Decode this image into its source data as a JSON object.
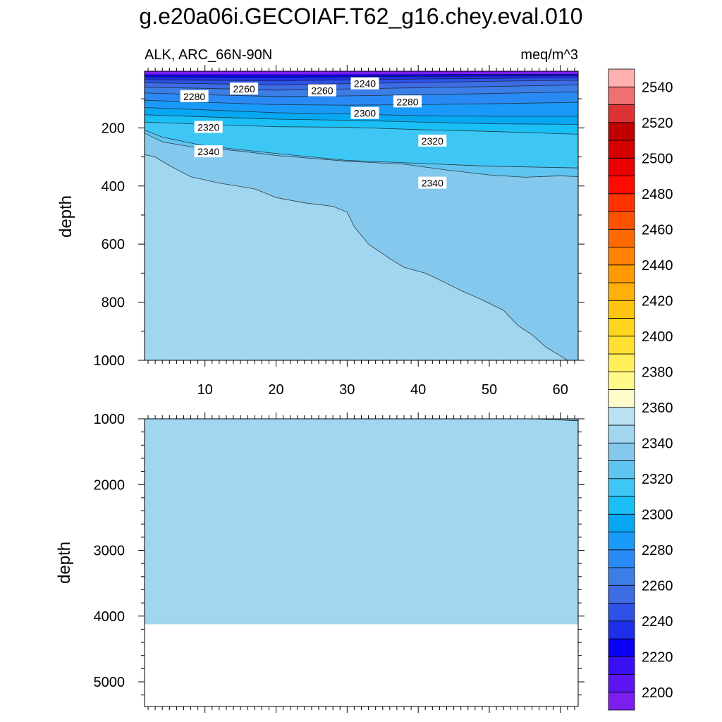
{
  "chart_data": {
    "type": "heatmap",
    "title": "g.e20a06i.GECOIAF.T62_g16.chey.eval.010",
    "panels": [
      {
        "name": "upper",
        "left_label": "ALK, ARC_66N-90N",
        "right_label": "meq/m^3",
        "ylabel": "depth",
        "ylim": [
          0,
          1000
        ],
        "xlim": [
          1.5,
          62.5
        ],
        "x_ticks": [
          10,
          20,
          30,
          40,
          50,
          60
        ],
        "y_ticks": [
          200,
          400,
          600,
          800,
          1000
        ],
        "y_tick_labels": [
          "200",
          "400",
          "600",
          "800",
          "1000"
        ],
        "top_depth": 5,
        "contour_lines": [
          {
            "level": 2220,
            "points": [
              [
                1.5,
                12
              ],
              [
                20,
                12
              ],
              [
                40,
                11
              ],
              [
                62.5,
                11
              ]
            ]
          },
          {
            "level": 2230,
            "points": [
              [
                1.5,
                18
              ],
              [
                20,
                19
              ],
              [
                40,
                17
              ],
              [
                62.5,
                15
              ]
            ]
          },
          {
            "level": 2240,
            "points": [
              [
                1.5,
                25
              ],
              [
                10,
                26
              ],
              [
                20,
                27
              ],
              [
                30,
                25
              ],
              [
                40,
                23
              ],
              [
                50,
                22
              ],
              [
                62.5,
                20
              ]
            ]
          },
          {
            "level": 2250,
            "points": [
              [
                1.5,
                34
              ],
              [
                10,
                36
              ],
              [
                20,
                38
              ],
              [
                30,
                35
              ],
              [
                40,
                32
              ],
              [
                50,
                30
              ],
              [
                62.5,
                27
              ]
            ]
          },
          {
            "level": 2260,
            "points": [
              [
                1.5,
                45
              ],
              [
                10,
                48
              ],
              [
                20,
                52
              ],
              [
                30,
                48
              ],
              [
                40,
                44
              ],
              [
                50,
                40
              ],
              [
                62.5,
                36
              ]
            ]
          },
          {
            "level": 2270,
            "points": [
              [
                1.5,
                60
              ],
              [
                10,
                64
              ],
              [
                20,
                70
              ],
              [
                30,
                66
              ],
              [
                40,
                62
              ],
              [
                50,
                58
              ],
              [
                62.5,
                52
              ]
            ]
          },
          {
            "level": 2280,
            "points": [
              [
                1.5,
                80
              ],
              [
                10,
                86
              ],
              [
                20,
                92
              ],
              [
                30,
                90
              ],
              [
                40,
                86
              ],
              [
                50,
                82
              ],
              [
                62.5,
                76
              ]
            ]
          },
          {
            "level": 2290,
            "points": [
              [
                1.5,
                105
              ],
              [
                10,
                112
              ],
              [
                20,
                120
              ],
              [
                30,
                122
              ],
              [
                40,
                120
              ],
              [
                50,
                117
              ],
              [
                62.5,
                112
              ]
            ]
          },
          {
            "level": 2300,
            "points": [
              [
                1.5,
                130
              ],
              [
                10,
                138
              ],
              [
                20,
                148
              ],
              [
                30,
                152
              ],
              [
                40,
                158
              ],
              [
                50,
                160
              ],
              [
                62.5,
                160
              ]
            ]
          },
          {
            "level": 2310,
            "points": [
              [
                1.5,
                155
              ],
              [
                10,
                162
              ],
              [
                20,
                170
              ],
              [
                30,
                174
              ],
              [
                40,
                180
              ],
              [
                50,
                186
              ],
              [
                62.5,
                188
              ]
            ]
          },
          {
            "level": 2320,
            "points": [
              [
                1.5,
                180
              ],
              [
                10,
                188
              ],
              [
                20,
                196
              ],
              [
                30,
                198
              ],
              [
                40,
                206
              ],
              [
                50,
                212
              ],
              [
                62.5,
                222
              ]
            ]
          },
          {
            "level": 2330,
            "points": [
              [
                1.5,
                208
              ],
              [
                4,
                232
              ],
              [
                10,
                262
              ],
              [
                20,
                288
              ],
              [
                30,
                312
              ],
              [
                40,
                322
              ],
              [
                50,
                332
              ],
              [
                62.5,
                338
              ]
            ]
          },
          {
            "level": 2340,
            "points": [
              [
                1.5,
                218
              ],
              [
                4,
                248
              ],
              [
                8,
                265
              ],
              [
                15,
                280
              ],
              [
                20,
                295
              ],
              [
                30,
                315
              ],
              [
                38,
                325
              ],
              [
                44,
                345
              ],
              [
                50,
                362
              ],
              [
                55,
                370
              ],
              [
                60,
                365
              ],
              [
                62.5,
                368
              ]
            ]
          },
          {
            "level": 2350,
            "points": [
              [
                1.5,
                292
              ],
              [
                3,
                300
              ],
              [
                5,
                330
              ],
              [
                8,
                368
              ],
              [
                12,
                390
              ],
              [
                17,
                410
              ],
              [
                20,
                440
              ],
              [
                24,
                458
              ],
              [
                28,
                470
              ],
              [
                30,
                490
              ],
              [
                31,
                540
              ],
              [
                33,
                600
              ],
              [
                36,
                650
              ],
              [
                38,
                680
              ],
              [
                41,
                700
              ],
              [
                44,
                735
              ],
              [
                46,
                760
              ],
              [
                49,
                792
              ],
              [
                52,
                828
              ],
              [
                54,
                880
              ],
              [
                56,
                912
              ],
              [
                58,
                955
              ],
              [
                60,
                985
              ],
              [
                61,
                1000
              ]
            ]
          }
        ],
        "contour_labels": [
          {
            "text": "2240",
            "x": 32.5,
            "y": 48
          },
          {
            "text": "2260",
            "x": 15.5,
            "y": 66
          },
          {
            "text": "2260",
            "x": 26.5,
            "y": 72
          },
          {
            "text": "2280",
            "x": 8.5,
            "y": 92
          },
          {
            "text": "2280",
            "x": 38.5,
            "y": 110
          },
          {
            "text": "2300",
            "x": 32.5,
            "y": 150
          },
          {
            "text": "2320",
            "x": 10.5,
            "y": 198
          },
          {
            "text": "2320",
            "x": 42,
            "y": 245
          },
          {
            "text": "2340",
            "x": 10.5,
            "y": 282
          },
          {
            "text": "2340",
            "x": 42,
            "y": 390
          }
        ]
      },
      {
        "name": "lower",
        "ylabel": "depth",
        "ylim": [
          1000,
          5375
        ],
        "xlim": [
          1.5,
          62.5
        ],
        "y_ticks": [
          1000,
          2000,
          3000,
          4000,
          5000
        ],
        "y_tick_labels": [
          "1000",
          "2000",
          "3000",
          "4000",
          "5000"
        ],
        "fill_value": 2355,
        "fill_depth_max": 4125,
        "deep_corner": {
          "level": 2350,
          "points": [
            [
              56,
              1000
            ],
            [
              59,
              1012
            ],
            [
              62.5,
              1030
            ]
          ]
        }
      }
    ],
    "colorbar": {
      "levels": [
        2200,
        2210,
        2220,
        2230,
        2240,
        2250,
        2260,
        2270,
        2280,
        2290,
        2300,
        2310,
        2320,
        2330,
        2340,
        2350,
        2360,
        2370,
        2380,
        2390,
        2400,
        2410,
        2420,
        2430,
        2440,
        2450,
        2460,
        2470,
        2480,
        2490,
        2500,
        2510,
        2520,
        2530,
        2540,
        2550
      ],
      "colors": [
        "#7c1ef0",
        "#5a15f0",
        "#3a0ff4",
        "#0a00f5",
        "#1d2fe8",
        "#2e52e8",
        "#3d6ce4",
        "#3a7ee6",
        "#2a8af5",
        "#1a9af8",
        "#06a8f2",
        "#1ac0f5",
        "#3ec6f5",
        "#60c4f0",
        "#84c8ed",
        "#a0d6f0",
        "#bae2f4",
        "#fffccc",
        "#fff88a",
        "#fff05a",
        "#ffe033",
        "#ffd51f",
        "#ffc40f",
        "#ffb00a",
        "#ff9a00",
        "#ff8200",
        "#ff6a00",
        "#ff5200",
        "#ff3200",
        "#ff0a00",
        "#ea0000",
        "#d50000",
        "#c00000",
        "#dd3333",
        "#ee7070",
        "#ffb0b0"
      ],
      "tick_labels": [
        "2200",
        "2220",
        "2240",
        "2260",
        "2280",
        "2300",
        "2320",
        "2340",
        "2360",
        "2380",
        "2400",
        "2420",
        "2440",
        "2460",
        "2480",
        "2500",
        "2520",
        "2540"
      ]
    }
  }
}
